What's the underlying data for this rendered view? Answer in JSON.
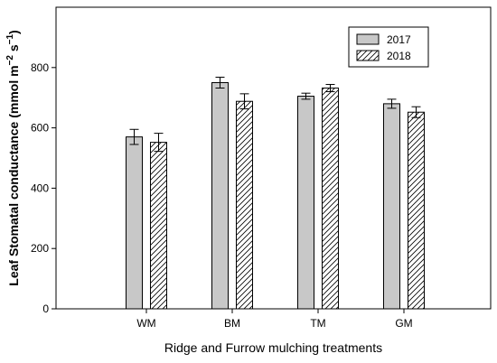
{
  "chart_data": {
    "type": "bar",
    "title": "",
    "xlabel": "Ridge and Furrow mulching treatments",
    "ylabel_main": "Leaf Stomatal conductance (mmol m",
    "ylabel_sup1": "−2",
    "ylabel_mid": " s",
    "ylabel_sup2": "−1",
    "ylabel_end": ")",
    "categories": [
      "WM",
      "BM",
      "TM",
      "GM"
    ],
    "series": [
      {
        "name": "2017",
        "values": [
          570,
          750,
          705,
          680
        ],
        "errors": [
          25,
          18,
          10,
          15
        ],
        "fill": "#c8c8c8",
        "pattern": "solid"
      },
      {
        "name": "2018",
        "values": [
          552,
          688,
          732,
          652
        ],
        "errors": [
          30,
          25,
          12,
          18
        ],
        "fill": "#ffffff",
        "pattern": "hatch"
      }
    ],
    "ylim": [
      0,
      1000
    ],
    "yticks": [
      0,
      200,
      400,
      600,
      800
    ],
    "legend_placement": "top-right",
    "grid": false
  }
}
